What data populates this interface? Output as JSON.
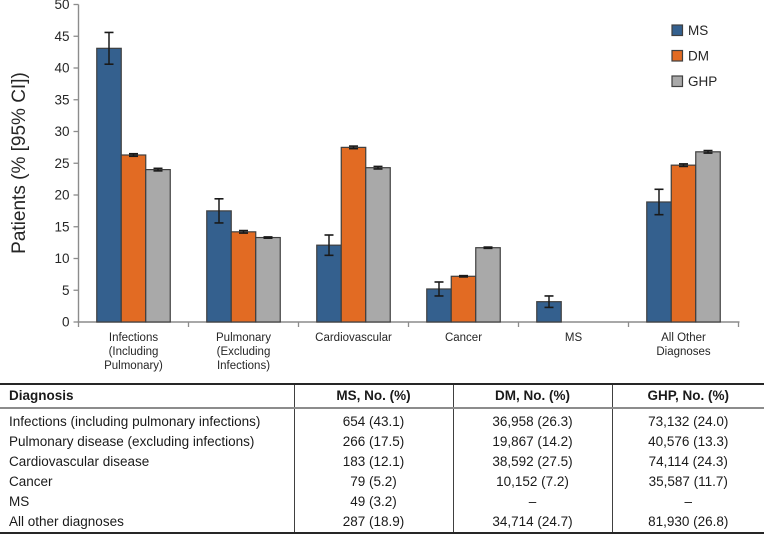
{
  "chart_data": {
    "type": "bar",
    "title": "",
    "xlabel": "",
    "ylabel": "Patients (% [95% CI])",
    "ylim": [
      0,
      50
    ],
    "ytick_step": 5,
    "ytick_labels": [
      "0",
      "5",
      "10",
      "15",
      "20",
      "25",
      "30",
      "35",
      "40",
      "45",
      "50"
    ],
    "grid": false,
    "legend_position": "top-right",
    "error_bars": "95% CI",
    "categories": [
      "Infections (Including Pulmonary)",
      "Pulmonary (Excluding Infections)",
      "Cardiovascular",
      "Cancer",
      "MS",
      "All Other Diagnoses"
    ],
    "category_lines": [
      [
        "Infections",
        "(Including",
        "Pulmonary)"
      ],
      [
        "Pulmonary",
        "(Excluding",
        "Infections)"
      ],
      [
        "Cardiovascular"
      ],
      [
        "Cancer"
      ],
      [
        "MS"
      ],
      [
        "All Other",
        "Diagnoses"
      ]
    ],
    "series": [
      {
        "name": "MS",
        "color": "#34608E",
        "values": [
          43.1,
          17.5,
          12.1,
          5.2,
          3.2,
          18.9
        ],
        "ci95": [
          [
            40.6,
            45.6
          ],
          [
            15.6,
            19.4
          ],
          [
            10.5,
            13.7
          ],
          [
            4.1,
            6.3
          ],
          [
            2.3,
            4.1
          ],
          [
            16.9,
            20.9
          ]
        ]
      },
      {
        "name": "DM",
        "color": "#E26B23",
        "values": [
          26.3,
          14.2,
          27.5,
          7.2,
          null,
          24.7
        ],
        "ci95": [
          [
            26.1,
            26.5
          ],
          [
            14.0,
            14.4
          ],
          [
            27.3,
            27.7
          ],
          [
            7.1,
            7.3
          ],
          null,
          [
            24.5,
            24.9
          ]
        ]
      },
      {
        "name": "GHP",
        "color": "#A9A9A9",
        "values": [
          24.0,
          13.3,
          24.3,
          11.7,
          null,
          26.8
        ],
        "ci95": [
          [
            23.8,
            24.2
          ],
          [
            13.2,
            13.4
          ],
          [
            24.1,
            24.5
          ],
          [
            11.6,
            11.8
          ],
          null,
          [
            26.6,
            27.0
          ]
        ]
      }
    ]
  },
  "table": {
    "headers": [
      "Diagnosis",
      "MS, No. (%)",
      "DM, No. (%)",
      "GHP, No. (%)"
    ],
    "rows": [
      [
        "Infections (including pulmonary infections)",
        "654 (43.1)",
        "36,958 (26.3)",
        "73,132 (24.0)"
      ],
      [
        "Pulmonary disease (excluding infections)",
        "266 (17.5)",
        "19,867 (14.2)",
        "40,576 (13.3)"
      ],
      [
        "Cardiovascular disease",
        "183 (12.1)",
        "38,592 (27.5)",
        "74,114 (24.3)"
      ],
      [
        "Cancer",
        "79 (5.2)",
        "10,152 (7.2)",
        "35,587 (11.7)"
      ],
      [
        "MS",
        "49 (3.2)",
        "–",
        "–"
      ],
      [
        "All other diagnoses",
        "287 (18.9)",
        "34,714 (24.7)",
        "81,930 (26.8)"
      ]
    ]
  },
  "colors": {
    "axis": "#8C8C8C",
    "text": "#262626",
    "bar_border": "#3F3F3F",
    "error_bar": "#1A1A1A",
    "table_border_dark": "#262626",
    "table_header_rule": "#8C8C8C",
    "table_divider": "#404040",
    "background": "#FFFFFF"
  }
}
